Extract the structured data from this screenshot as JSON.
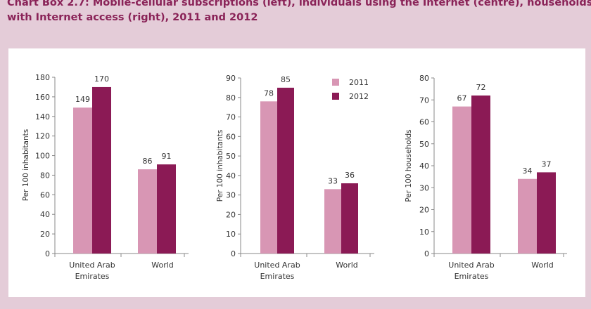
{
  "title": {
    "line1": "Chart Box 2.7: Mobile-cellular subscriptions (left), individuals using the Internet (centre), households",
    "line2": "with Internet access (right), 2011 and 2012"
  },
  "colors": {
    "s2011": "#d896b4",
    "s2012": "#8b1a55",
    "axis": "#888888",
    "text": "#333333"
  },
  "legend": [
    {
      "name": "2011",
      "color": "#d896b4"
    },
    {
      "name": "2012",
      "color": "#8b1a55"
    }
  ],
  "chart_data": [
    {
      "type": "bar",
      "categories": [
        "United Arab Emirates",
        "World"
      ],
      "category_lines": [
        [
          "United Arab",
          "Emirates"
        ],
        [
          "World"
        ]
      ],
      "series": [
        {
          "name": "2011",
          "values": [
            149,
            86
          ]
        },
        {
          "name": "2012",
          "values": [
            170,
            91
          ]
        }
      ],
      "ylabel": "Per 100 inhabitants",
      "ylim": [
        0,
        180
      ],
      "yticks": [
        0,
        20,
        40,
        60,
        80,
        100,
        120,
        140,
        160,
        180
      ]
    },
    {
      "type": "bar",
      "categories": [
        "United Arab Emirates",
        "World"
      ],
      "category_lines": [
        [
          "United Arab",
          "Emirates"
        ],
        [
          "World"
        ]
      ],
      "series": [
        {
          "name": "2011",
          "values": [
            78,
            33
          ]
        },
        {
          "name": "2012",
          "values": [
            85,
            36
          ]
        }
      ],
      "ylabel": "Per 100 inhabitants",
      "ylim": [
        0,
        90
      ],
      "yticks": [
        0,
        10,
        20,
        30,
        40,
        50,
        60,
        70,
        80,
        90
      ],
      "legend": "top-right"
    },
    {
      "type": "bar",
      "categories": [
        "United Arab Emirates",
        "World"
      ],
      "category_lines": [
        [
          "United Arab",
          "Emirates"
        ],
        [
          "World"
        ]
      ],
      "series": [
        {
          "name": "2011",
          "values": [
            67,
            34
          ]
        },
        {
          "name": "2012",
          "values": [
            72,
            37
          ]
        }
      ],
      "ylabel": "Per 100 households",
      "ylim": [
        0,
        80
      ],
      "yticks": [
        0,
        10,
        20,
        30,
        40,
        50,
        60,
        70,
        80
      ]
    }
  ]
}
